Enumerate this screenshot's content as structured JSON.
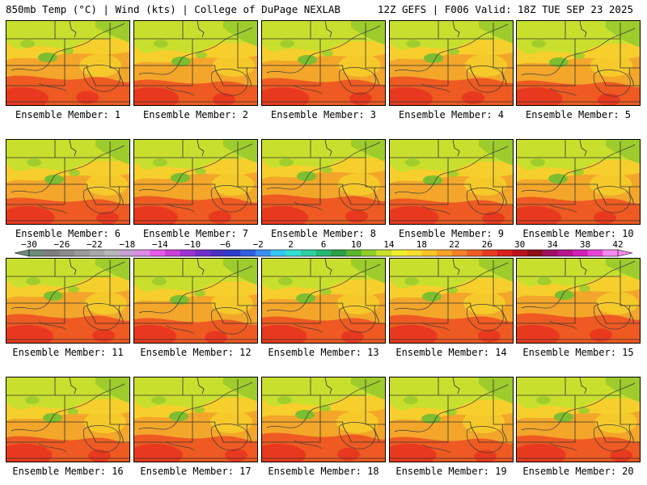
{
  "header": {
    "left": "850mb Temp (°C) | Wind (kts) | College of DuPage NEXLAB",
    "right": "12Z GEFS | F006 Valid: 18Z TUE SEP 23 2025"
  },
  "panel_label_prefix": "Ensemble Member:",
  "members": [
    1,
    2,
    3,
    4,
    5,
    6,
    7,
    8,
    9,
    10,
    11,
    12,
    13,
    14,
    15,
    16,
    17,
    18,
    19,
    20
  ],
  "colorbar": {
    "min": -30,
    "max": 42,
    "step": 2,
    "tick_labels": [
      "−30",
      "−26",
      "−22",
      "−18",
      "−14",
      "−10",
      "−6",
      "−2",
      "2",
      "6",
      "10",
      "14",
      "18",
      "22",
      "26",
      "30",
      "34",
      "38",
      "42"
    ],
    "colors": [
      "#6f8b7a",
      "#7d7d7d",
      "#8b8b8b",
      "#9a9a9a",
      "#a8a8a8",
      "#b8b8b8",
      "#c7a0d8",
      "#dc8be6",
      "#e85ae8",
      "#c93fd8",
      "#9d33d1",
      "#6f2fcb",
      "#4b2fc2",
      "#2c3ccb",
      "#2f5fe0",
      "#3b8ef0",
      "#35c7f2",
      "#34e0d0",
      "#2fd0a0",
      "#27b874",
      "#2aa048",
      "#57b52c",
      "#8fcf2a",
      "#c9e02c",
      "#eef02e",
      "#f8de2c",
      "#f8c42a",
      "#f7a327",
      "#f28226",
      "#ef5e23",
      "#e63b20",
      "#d91e1e",
      "#b8121c",
      "#8e0e18",
      "#9e1060",
      "#b8158f",
      "#d21fb6",
      "#e646d6",
      "#f78af0"
    ]
  },
  "map_colors": {
    "base_warm": "#f3a62a",
    "base_hot": "#ee5a22",
    "very_hot": "#e8391e",
    "mild": "#f6cf2c",
    "cool": "#c8df2e",
    "cooler": "#9dcc2c",
    "cold": "#7dbe2e",
    "lines": "#333333"
  }
}
